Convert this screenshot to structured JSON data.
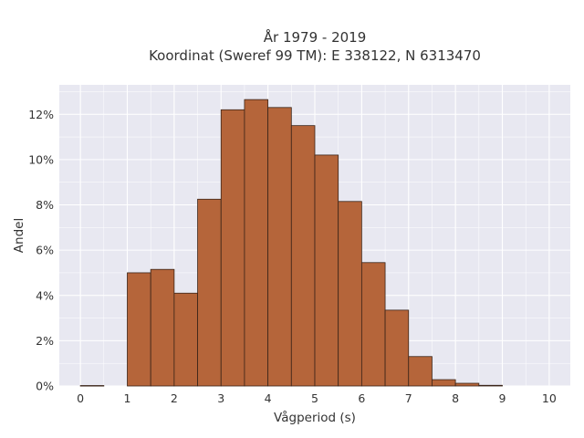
{
  "chart_data": {
    "type": "bar",
    "title_line1": "År 1979 - 2019",
    "title_line2": "Koordinat (Sweref 99 TM): E 338122, N 6313470",
    "xlabel": "Vågperiod (s)",
    "ylabel": "Andel",
    "bin_width": 0.5,
    "bin_starts": [
      0,
      0.5,
      1,
      1.5,
      2,
      2.5,
      3,
      3.5,
      4,
      4.5,
      5,
      5.5,
      6,
      6.5,
      7,
      7.5,
      8,
      8.5,
      9,
      9.5
    ],
    "values": [
      0.02,
      0,
      5.0,
      5.15,
      4.1,
      8.25,
      12.2,
      12.65,
      12.3,
      11.5,
      10.2,
      8.15,
      5.45,
      3.35,
      1.3,
      0.28,
      0.12,
      0.03,
      0,
      0
    ],
    "value_unit": "%",
    "xlim": [
      -0.45,
      10.45
    ],
    "ylim": [
      0,
      13.3
    ],
    "xticks": [
      0,
      1,
      2,
      3,
      4,
      5,
      6,
      7,
      8,
      9,
      10
    ],
    "xtick_labels": [
      "0",
      "1",
      "2",
      "3",
      "4",
      "5",
      "6",
      "7",
      "8",
      "9",
      "10"
    ],
    "yticks": [
      0,
      2,
      4,
      6,
      8,
      10,
      12
    ],
    "ytick_labels": [
      "0%",
      "2%",
      "4%",
      "6%",
      "8%",
      "10%",
      "12%"
    ],
    "grid": true,
    "colors": {
      "bar_fill": "#b5653a",
      "bar_edge": "#3a2418",
      "plot_bg": "#e8e8f1",
      "grid": "#ffffff"
    }
  }
}
